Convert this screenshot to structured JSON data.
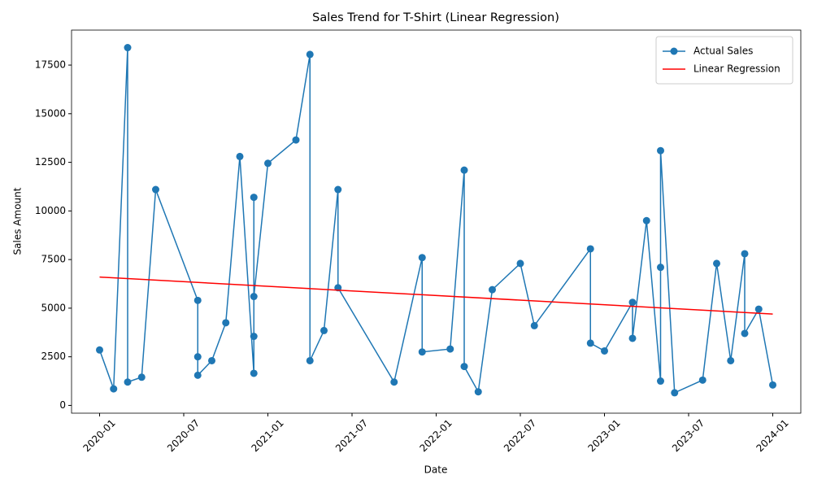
{
  "chart_data": {
    "type": "line",
    "title": "Sales Trend for T-Shirt (Linear Regression)",
    "x_label": "Date",
    "y_label": "Sales Amount",
    "xlim": [
      "2019-11",
      "2024-03"
    ],
    "xticks": [
      "2020-01",
      "2020-07",
      "2021-01",
      "2021-07",
      "2022-01",
      "2022-07",
      "2023-01",
      "2023-07",
      "2024-01"
    ],
    "ylim": [
      -400,
      19300
    ],
    "yticks": [
      0,
      2500,
      5000,
      7500,
      10000,
      12500,
      15000,
      17500
    ],
    "legend": "upper right",
    "series": [
      {
        "name": "Actual Sales",
        "color": "#1f77b4",
        "marker": true,
        "x": [
          "2020-01",
          "2020-02",
          "2020-03",
          "2020-03",
          "2020-04",
          "2020-05",
          "2020-08",
          "2020-08",
          "2020-08",
          "2020-09",
          "2020-10",
          "2020-11",
          "2020-12",
          "2020-12",
          "2020-12",
          "2020-12",
          "2021-01",
          "2021-03",
          "2021-04",
          "2021-04",
          "2021-05",
          "2021-06",
          "2021-06",
          "2021-10",
          "2021-12",
          "2021-12",
          "2022-02",
          "2022-03",
          "2022-03",
          "2022-04",
          "2022-05",
          "2022-07",
          "2022-08",
          "2022-12",
          "2022-12",
          "2023-01",
          "2023-03",
          "2023-03",
          "2023-04",
          "2023-05",
          "2023-05",
          "2023-05",
          "2023-06",
          "2023-08",
          "2023-09",
          "2023-10",
          "2023-11",
          "2023-11",
          "2023-12",
          "2024-01"
        ],
        "values": [
          2850,
          850,
          18400,
          1200,
          1450,
          11100,
          5400,
          2500,
          1550,
          2300,
          4250,
          12800,
          1650,
          10700,
          3550,
          5600,
          12450,
          13650,
          18050,
          2300,
          3850,
          11100,
          6050,
          1200,
          7600,
          2750,
          2900,
          12100,
          2000,
          700,
          5950,
          7300,
          4100,
          8050,
          3200,
          2800,
          5300,
          3450,
          9500,
          1250,
          7100,
          13100,
          650,
          1300,
          7300,
          2300,
          7800,
          3700,
          4950,
          1050
        ]
      },
      {
        "name": "Linear Regression",
        "color": "#ff0000",
        "marker": false,
        "x": [
          "2020-01",
          "2024-01"
        ],
        "values": [
          6600,
          4700
        ]
      }
    ]
  }
}
